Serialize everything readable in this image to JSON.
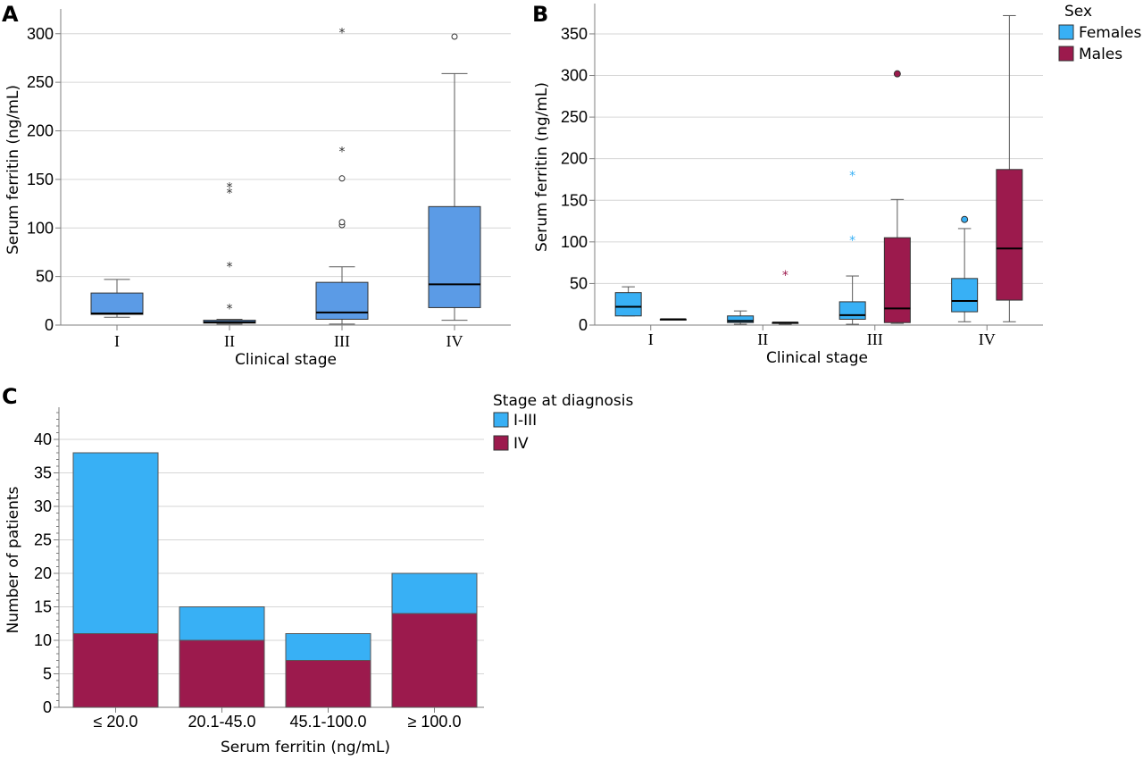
{
  "panels": {
    "A": {
      "letter": "A"
    },
    "B": {
      "letter": "B"
    },
    "C": {
      "letter": "C"
    }
  },
  "colors": {
    "panel_a_box": "#5b9be6",
    "females": "#38b0f5",
    "males": "#9c1a4d",
    "stage_i_iii": "#38b0f5",
    "stage_iv": "#9c1a4d"
  },
  "chart_data": [
    {
      "panel": "A",
      "type": "box",
      "xlabel": "Clinical stage",
      "ylabel": "Serum ferritin (ng/mL)",
      "ylim": [
        0,
        320
      ],
      "yticks": [
        0,
        50,
        100,
        150,
        200,
        250,
        300
      ],
      "grid": true,
      "categories": [
        "I",
        "II",
        "III",
        "IV"
      ],
      "boxes": [
        {
          "category": "I",
          "min": 8,
          "q1": 11,
          "median": 12,
          "q3": 33,
          "max": 47,
          "outliers": [],
          "extremes": []
        },
        {
          "category": "II",
          "min": 1,
          "q1": 2,
          "median": 3,
          "q3": 5,
          "max": 6,
          "outliers": [],
          "extremes": [
            18,
            61,
            137,
            143
          ]
        },
        {
          "category": "III",
          "min": 1,
          "q1": 6,
          "median": 13,
          "q3": 44,
          "max": 60,
          "outliers": [
            103,
            106,
            151
          ],
          "extremes": [
            180,
            302
          ]
        },
        {
          "category": "IV",
          "min": 5,
          "q1": 18,
          "median": 42,
          "q3": 122,
          "max": 259,
          "outliers": [
            297
          ],
          "extremes": []
        }
      ]
    },
    {
      "panel": "B",
      "type": "box",
      "xlabel": "Clinical stage",
      "ylabel": "Serum ferritin (ng/mL)",
      "ylim": [
        0,
        380
      ],
      "yticks": [
        0,
        50,
        100,
        150,
        200,
        250,
        300,
        350
      ],
      "grid": true,
      "categories": [
        "I",
        "II",
        "III",
        "IV"
      ],
      "legend": {
        "title": "Sex",
        "position": "top-right",
        "entries": [
          "Females",
          "Males"
        ]
      },
      "series": [
        {
          "name": "Females",
          "boxes": [
            {
              "category": "I",
              "min": 11,
              "q1": 11,
              "median": 22,
              "q3": 39,
              "max": 46,
              "outliers": [],
              "extremes": []
            },
            {
              "category": "II",
              "min": 1,
              "q1": 3,
              "median": 5,
              "q3": 11,
              "max": 17,
              "outliers": [],
              "extremes": []
            },
            {
              "category": "III",
              "min": 1,
              "q1": 7,
              "median": 12,
              "q3": 28,
              "max": 59,
              "outliers": [],
              "extremes": [
                103,
                181
              ]
            },
            {
              "category": "IV",
              "min": 4,
              "q1": 16,
              "median": 29,
              "q3": 56,
              "max": 116,
              "outliers": [
                127
              ],
              "extremes": []
            }
          ]
        },
        {
          "name": "Males",
          "boxes": [
            {
              "category": "I",
              "min": 7,
              "q1": 7,
              "median": 7,
              "q3": 7,
              "max": 7,
              "outliers": [],
              "extremes": []
            },
            {
              "category": "II",
              "min": 1,
              "q1": 2,
              "median": 3,
              "q3": 3,
              "max": 3,
              "outliers": [],
              "extremes": [
                61
              ]
            },
            {
              "category": "III",
              "min": 2,
              "q1": 3,
              "median": 20,
              "q3": 105,
              "max": 151,
              "outliers": [
                302
              ],
              "extremes": []
            },
            {
              "category": "IV",
              "min": 4,
              "q1": 30,
              "median": 92,
              "q3": 187,
              "max": 372,
              "outliers": [],
              "extremes": []
            }
          ]
        }
      ]
    },
    {
      "panel": "C",
      "type": "bar",
      "stacked": true,
      "xlabel": "Serum ferritin (ng/mL)",
      "ylabel": "Number of patients",
      "ylim": [
        0,
        44
      ],
      "yticks": [
        0,
        5,
        10,
        15,
        20,
        25,
        30,
        35,
        40
      ],
      "grid": true,
      "categories": [
        "≤ 20.0",
        "20.1-45.0",
        "45.1-100.0",
        "≥ 100.0"
      ],
      "legend": {
        "title": "Stage at diagnosis",
        "position": "top-right",
        "entries": [
          "I-III",
          "IV"
        ]
      },
      "series": [
        {
          "name": "IV",
          "values": [
            11,
            10,
            7,
            14
          ]
        },
        {
          "name": "I-III",
          "values": [
            27,
            5,
            4,
            6
          ]
        }
      ],
      "totals": [
        38,
        15,
        11,
        20
      ]
    }
  ]
}
